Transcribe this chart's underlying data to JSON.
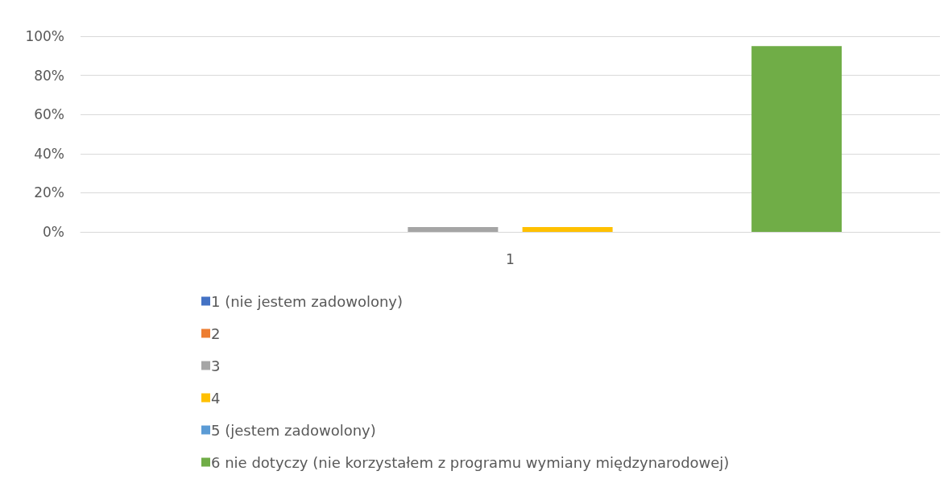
{
  "chart_data": {
    "type": "bar",
    "categories": [
      "1"
    ],
    "series": [
      {
        "name": "1 (nie jestem zadowolony)",
        "color": "#4472c4",
        "values": [
          0
        ]
      },
      {
        "name": "2",
        "color": "#ed7d31",
        "values": [
          0
        ]
      },
      {
        "name": "3",
        "color": "#a5a5a5",
        "values": [
          2.5
        ]
      },
      {
        "name": "4",
        "color": "#ffc000",
        "values": [
          2.5
        ]
      },
      {
        "name": "5 (jestem zadowolony)",
        "color": "#5b9bd5",
        "values": [
          0
        ]
      },
      {
        "name": "6 nie dotyczy (nie korzystałem z programu wymiany międzynarodowej)",
        "color": "#70ad47",
        "values": [
          95
        ]
      }
    ],
    "ylim": [
      0,
      100
    ],
    "yticks": [
      {
        "value": 0,
        "label": "0%"
      },
      {
        "value": 20,
        "label": "20%"
      },
      {
        "value": 40,
        "label": "40%"
      },
      {
        "value": 60,
        "label": "60%"
      },
      {
        "value": 80,
        "label": "80%"
      },
      {
        "value": 100,
        "label": "100%"
      }
    ],
    "grid": "y",
    "legend": "bottom"
  }
}
